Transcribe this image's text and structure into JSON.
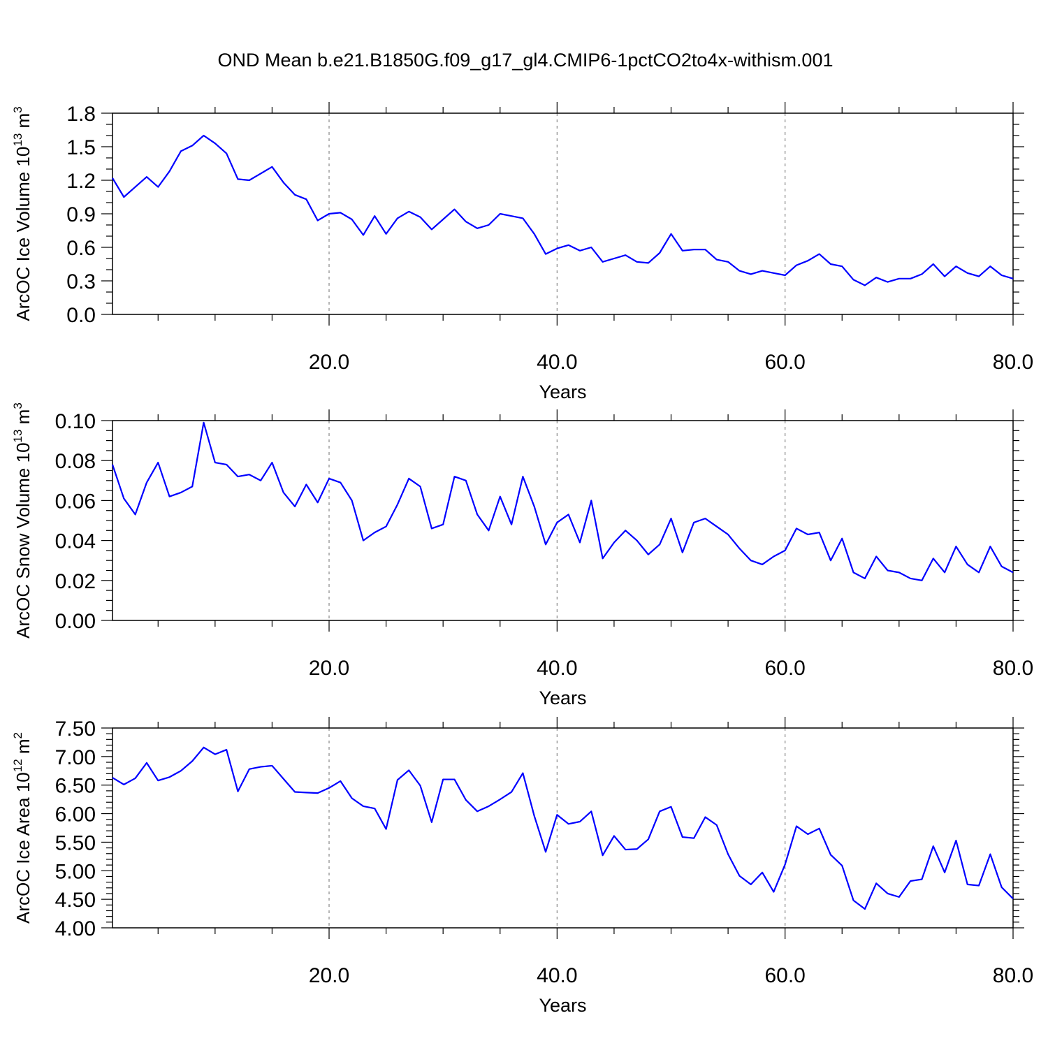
{
  "title": "OND Mean b.e21.B1850G.f09_g17_gl4.CMIP6-1pctCO2to4x-withism.001",
  "colors": {
    "series": "#0000ff",
    "axis": "#000000",
    "grid": "#888888"
  },
  "chart_data": [
    {
      "type": "line",
      "ylabel_main": "ArcOC Ice Volume 10",
      "ylabel_exp": "13",
      "ylabel_unit": " m",
      "ylabel_unit_exp": "3",
      "xlabel": "Years",
      "xlim": [
        1,
        80
      ],
      "ylim": [
        0.0,
        1.8
      ],
      "yticks": [
        0.0,
        0.3,
        0.6,
        0.9,
        1.2,
        1.5,
        1.8
      ],
      "ytick_labels": [
        "0.0",
        "0.3",
        "0.6",
        "0.9",
        "1.2",
        "1.5",
        "1.8"
      ],
      "yminor_step": 0.1,
      "xticks": [
        20,
        40,
        60,
        80
      ],
      "xtick_labels": [
        "20.0",
        "40.0",
        "60.0",
        "80.0"
      ],
      "xminor_step": 5,
      "grid": "vertical dashed at major x ticks",
      "series": [
        {
          "x_start": 1,
          "x_step": 1,
          "values": [
            1.22,
            1.05,
            1.14,
            1.23,
            1.14,
            1.28,
            1.46,
            1.51,
            1.6,
            1.53,
            1.44,
            1.21,
            1.2,
            1.26,
            1.32,
            1.18,
            1.07,
            1.03,
            0.84,
            0.9,
            0.91,
            0.85,
            0.71,
            0.88,
            0.72,
            0.86,
            0.92,
            0.87,
            0.76,
            0.85,
            0.94,
            0.83,
            0.77,
            0.8,
            0.9,
            0.88,
            0.86,
            0.72,
            0.54,
            0.59,
            0.62,
            0.57,
            0.6,
            0.47,
            0.5,
            0.53,
            0.47,
            0.46,
            0.55,
            0.72,
            0.57,
            0.58,
            0.58,
            0.49,
            0.47,
            0.39,
            0.36,
            0.39,
            0.37,
            0.35,
            0.44,
            0.48,
            0.54,
            0.45,
            0.43,
            0.31,
            0.26,
            0.33,
            0.29,
            0.32,
            0.32,
            0.36,
            0.45,
            0.34,
            0.43,
            0.37,
            0.34,
            0.43,
            0.35,
            0.32
          ]
        }
      ]
    },
    {
      "type": "line",
      "ylabel_main": "ArcOC Snow Volume 10",
      "ylabel_exp": "13",
      "ylabel_unit": " m",
      "ylabel_unit_exp": "3",
      "xlabel": "Years",
      "xlim": [
        1,
        80
      ],
      "ylim": [
        0.0,
        0.1
      ],
      "yticks": [
        0.0,
        0.02,
        0.04,
        0.06,
        0.08,
        0.1
      ],
      "ytick_labels": [
        "0.00",
        "0.02",
        "0.04",
        "0.06",
        "0.08",
        "0.10"
      ],
      "yminor_step": 0.005,
      "xticks": [
        20,
        40,
        60,
        80
      ],
      "xtick_labels": [
        "20.0",
        "40.0",
        "60.0",
        "80.0"
      ],
      "xminor_step": 5,
      "grid": "vertical dashed at major x ticks",
      "series": [
        {
          "x_start": 1,
          "x_step": 1,
          "values": [
            0.078,
            0.061,
            0.053,
            0.069,
            0.079,
            0.062,
            0.064,
            0.067,
            0.099,
            0.079,
            0.078,
            0.072,
            0.073,
            0.07,
            0.079,
            0.064,
            0.057,
            0.068,
            0.059,
            0.071,
            0.069,
            0.06,
            0.04,
            0.044,
            0.047,
            0.058,
            0.071,
            0.067,
            0.046,
            0.048,
            0.072,
            0.07,
            0.053,
            0.045,
            0.062,
            0.048,
            0.072,
            0.057,
            0.038,
            0.049,
            0.053,
            0.039,
            0.06,
            0.031,
            0.039,
            0.045,
            0.04,
            0.033,
            0.038,
            0.051,
            0.034,
            0.049,
            0.051,
            0.047,
            0.043,
            0.036,
            0.03,
            0.028,
            0.032,
            0.035,
            0.046,
            0.043,
            0.044,
            0.03,
            0.041,
            0.024,
            0.021,
            0.032,
            0.025,
            0.024,
            0.021,
            0.02,
            0.031,
            0.024,
            0.037,
            0.028,
            0.024,
            0.037,
            0.027,
            0.024
          ]
        }
      ]
    },
    {
      "type": "line",
      "ylabel_main": "ArcOC Ice Area 10",
      "ylabel_exp": "12",
      "ylabel_unit": " m",
      "ylabel_unit_exp": "2",
      "xlabel": "Years",
      "xlim": [
        1,
        80
      ],
      "ylim": [
        4.0,
        7.5
      ],
      "yticks": [
        4.0,
        4.5,
        5.0,
        5.5,
        6.0,
        6.5,
        7.0,
        7.5
      ],
      "ytick_labels": [
        "4.00",
        "4.50",
        "5.00",
        "5.50",
        "6.00",
        "6.50",
        "7.00",
        "7.50"
      ],
      "yminor_step": 0.1,
      "xticks": [
        20,
        40,
        60,
        80
      ],
      "xtick_labels": [
        "20.0",
        "40.0",
        "60.0",
        "80.0"
      ],
      "xminor_step": 5,
      "grid": "vertical dashed at major x ticks",
      "series": [
        {
          "x_start": 1,
          "x_step": 1,
          "values": [
            6.63,
            6.51,
            6.62,
            6.89,
            6.58,
            6.64,
            6.75,
            6.92,
            7.16,
            7.04,
            7.12,
            6.39,
            6.78,
            6.82,
            6.84,
            6.61,
            6.38,
            6.37,
            6.36,
            6.45,
            6.57,
            6.27,
            6.13,
            6.09,
            5.73,
            6.59,
            6.76,
            6.49,
            5.85,
            6.6,
            6.6,
            6.24,
            6.04,
            6.13,
            6.25,
            6.38,
            6.71,
            5.96,
            5.33,
            5.98,
            5.82,
            5.86,
            6.04,
            5.27,
            5.61,
            5.37,
            5.38,
            5.55,
            6.04,
            6.12,
            5.59,
            5.57,
            5.94,
            5.8,
            5.29,
            4.91,
            4.76,
            4.97,
            4.63,
            5.11,
            5.78,
            5.64,
            5.74,
            5.28,
            5.09,
            4.48,
            4.33,
            4.78,
            4.6,
            4.54,
            4.82,
            4.85,
            5.43,
            4.97,
            5.53,
            4.76,
            4.74,
            5.29,
            4.71,
            4.51
          ]
        }
      ]
    }
  ]
}
